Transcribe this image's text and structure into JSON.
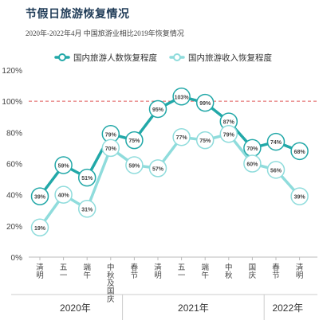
{
  "header": {
    "title": "节假日旅游恢复情况",
    "subtitle": "2020年-2022年4月 中国旅游业相比2019年恢复情况"
  },
  "chart_data": {
    "type": "line",
    "title": "节假日旅游恢复情况",
    "subtitle": "2020年-2022年4月 中国旅游业相比2019年恢复情况",
    "categories": [
      "清明",
      "五一",
      "端午",
      "中秋及国庆",
      "春节",
      "清明",
      "五一",
      "端午",
      "中秋",
      "国庆",
      "春节",
      "清明"
    ],
    "category_groups": [
      {
        "label": "2020年",
        "start": 0,
        "end": 3
      },
      {
        "label": "2021年",
        "start": 4,
        "end": 9
      },
      {
        "label": "2022年",
        "start": 10,
        "end": 11
      }
    ],
    "series": [
      {
        "name": "国内旅游人数恢复程度",
        "color": "#22a8a8",
        "values": [
          39,
          59,
          51,
          79,
          75,
          95,
          103,
          99,
          87,
          70,
          74,
          68
        ]
      },
      {
        "name": "国内旅游收入恢复程度",
        "color": "#8fdcdc",
        "values": [
          19,
          40,
          31,
          70,
          59,
          57,
          77,
          75,
          79,
          60,
          56,
          39
        ]
      }
    ],
    "value_suffix": "%",
    "ylim": [
      0,
      120
    ],
    "yticks": [
      0,
      20,
      40,
      60,
      80,
      100,
      120
    ],
    "reference_line": {
      "value": 100,
      "color": "#e05a5a",
      "style": "dashed"
    },
    "grid": false,
    "legend_position": "top"
  }
}
